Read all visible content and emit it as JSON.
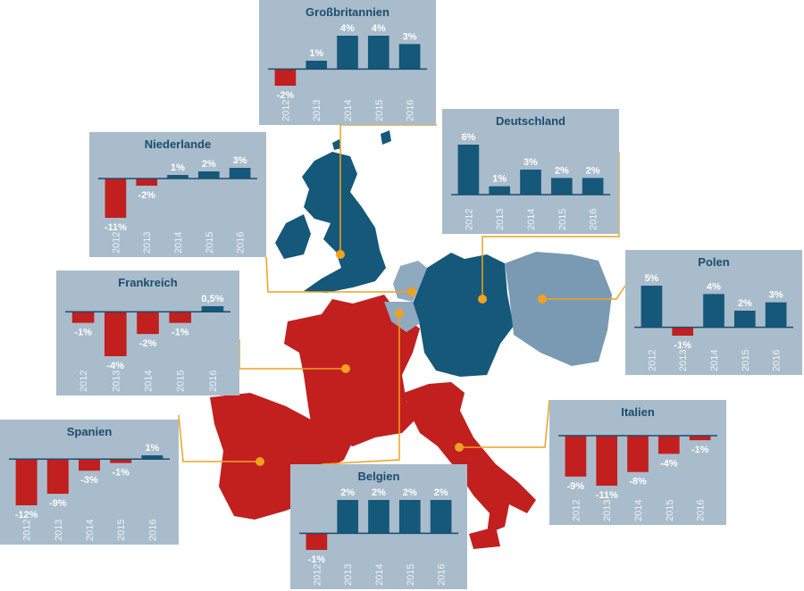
{
  "chart_data": [
    {
      "type": "bar",
      "title": "Großbritannien",
      "categories": [
        "2012",
        "2013",
        "2014",
        "2015",
        "2016"
      ],
      "values": [
        -2,
        1,
        4,
        4,
        3
      ],
      "value_labels": [
        "-2%",
        "1%",
        "4%",
        "4%",
        "3%"
      ],
      "colors": [
        "#c21f1f",
        "#15587a",
        "#15587a",
        "#15587a",
        "#15587a"
      ]
    },
    {
      "type": "bar",
      "title": "Deutschland",
      "categories": [
        "2012",
        "2013",
        "2014",
        "2015",
        "2016"
      ],
      "values": [
        6,
        1,
        3,
        2,
        2
      ],
      "value_labels": [
        "6%",
        "1%",
        "3%",
        "2%",
        "2%"
      ],
      "colors": [
        "#15587a",
        "#15587a",
        "#15587a",
        "#15587a",
        "#15587a"
      ]
    },
    {
      "type": "bar",
      "title": "Niederlande",
      "categories": [
        "2012",
        "2013",
        "2014",
        "2015",
        "2016"
      ],
      "values": [
        -11,
        -2,
        1,
        2,
        3
      ],
      "value_labels": [
        "-11%",
        "-2%",
        "1%",
        "2%",
        "3%"
      ],
      "colors": [
        "#c21f1f",
        "#c21f1f",
        "#15587a",
        "#15587a",
        "#15587a"
      ]
    },
    {
      "type": "bar",
      "title": "Polen",
      "categories": [
        "2012",
        "2013",
        "2014",
        "2015",
        "2016"
      ],
      "values": [
        5,
        -1,
        4,
        2,
        3
      ],
      "value_labels": [
        "5%",
        "-1%",
        "4%",
        "2%",
        "3%"
      ],
      "colors": [
        "#15587a",
        "#c21f1f",
        "#15587a",
        "#15587a",
        "#15587a"
      ]
    },
    {
      "type": "bar",
      "title": "Frankreich",
      "categories": [
        "2012",
        "2013",
        "2014",
        "2015",
        "2016"
      ],
      "values": [
        -1,
        -4,
        -2,
        -1,
        0.5
      ],
      "value_labels": [
        "-1%",
        "-4%",
        "-2%",
        "-1%",
        "0,5%"
      ],
      "colors": [
        "#c21f1f",
        "#c21f1f",
        "#c21f1f",
        "#c21f1f",
        "#15587a"
      ]
    },
    {
      "type": "bar",
      "title": "Spanien",
      "categories": [
        "2012",
        "2013",
        "2014",
        "2015",
        "2016"
      ],
      "values": [
        -12,
        -9,
        -3,
        -1,
        1
      ],
      "value_labels": [
        "-12%",
        "-9%",
        "-3%",
        "-1%",
        "1%"
      ],
      "colors": [
        "#c21f1f",
        "#c21f1f",
        "#c21f1f",
        "#c21f1f",
        "#15587a"
      ]
    },
    {
      "type": "bar",
      "title": "Italien",
      "categories": [
        "2012",
        "2013",
        "2014",
        "2015",
        "2016"
      ],
      "values": [
        -9,
        -11,
        -8,
        -4,
        -1
      ],
      "value_labels": [
        "-9%",
        "-11%",
        "-8%",
        "-4%",
        "-1%"
      ],
      "colors": [
        "#c21f1f",
        "#c21f1f",
        "#c21f1f",
        "#c21f1f",
        "#c21f1f"
      ]
    },
    {
      "type": "bar",
      "title": "Belgien",
      "categories": [
        "2012",
        "2013",
        "2014",
        "2015",
        "2016"
      ],
      "values": [
        -1,
        2,
        2,
        2,
        2
      ],
      "value_labels": [
        "-1%",
        "2%",
        "2%",
        "2%",
        "2%"
      ],
      "colors": [
        "#c21f1f",
        "#15587a",
        "#15587a",
        "#15587a",
        "#15587a"
      ]
    }
  ]
}
